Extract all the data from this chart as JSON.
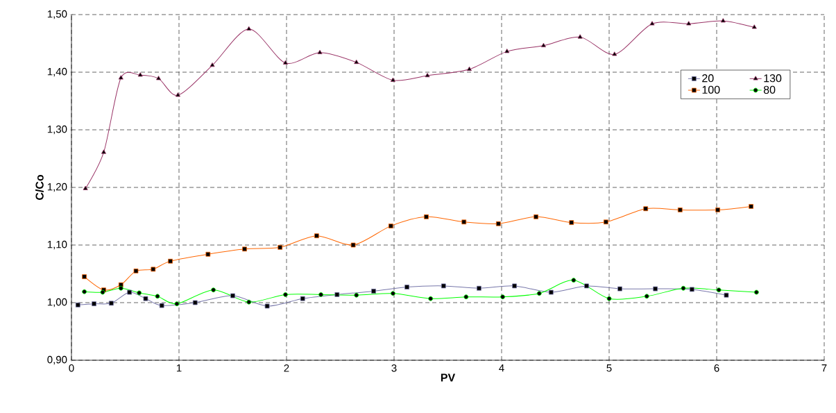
{
  "chart_data": {
    "type": "line",
    "xlabel": "PV",
    "ylabel": "C/Co",
    "xlim": [
      0,
      7
    ],
    "xticks": [
      0,
      1,
      2,
      3,
      4,
      5,
      6,
      7
    ],
    "ylim": [
      0.9,
      1.5
    ],
    "yticks": [
      {
        "value": 0.9,
        "label": "0,90"
      },
      {
        "value": 1.0,
        "label": "1,00"
      },
      {
        "value": 1.1,
        "label": "1,10"
      },
      {
        "value": 1.2,
        "label": "1,20"
      },
      {
        "value": 1.3,
        "label": "1,30"
      },
      {
        "value": 1.4,
        "label": "1,40"
      },
      {
        "value": 1.5,
        "label": "1,50"
      }
    ],
    "grid": true,
    "legend": "top right",
    "line_style": "solid",
    "series": [
      {
        "name": "20",
        "color": "#7777aa",
        "marker": "square",
        "x": [
          0.06,
          0.21,
          0.37,
          0.54,
          0.69,
          0.84,
          1.15,
          1.5,
          1.82,
          2.15,
          2.47,
          2.81,
          3.12,
          3.46,
          3.79,
          4.12,
          4.46,
          4.79,
          5.1,
          5.43,
          5.77,
          6.09
        ],
        "values": [
          0.996,
          0.998,
          0.999,
          1.018,
          1.007,
          0.995,
          1.0,
          1.012,
          0.994,
          1.007,
          1.014,
          1.02,
          1.027,
          1.029,
          1.025,
          1.029,
          1.018,
          1.029,
          1.024,
          1.024,
          1.023,
          1.013
        ]
      },
      {
        "name": "130",
        "color": "#993366",
        "marker": "triangle",
        "x": [
          0.13,
          0.3,
          0.46,
          0.64,
          0.81,
          0.99,
          1.31,
          1.65,
          1.99,
          2.31,
          2.65,
          2.99,
          3.31,
          3.7,
          4.05,
          4.39,
          4.73,
          5.05,
          5.4,
          5.74,
          6.06,
          6.35
        ],
        "values": [
          1.198,
          1.261,
          1.39,
          1.395,
          1.389,
          1.36,
          1.412,
          1.475,
          1.416,
          1.434,
          1.417,
          1.386,
          1.394,
          1.405,
          1.436,
          1.446,
          1.461,
          1.431,
          1.484,
          1.484,
          1.489,
          1.478
        ]
      },
      {
        "name": "100",
        "color": "#ff6600",
        "marker": "square",
        "x": [
          0.12,
          0.3,
          0.46,
          0.6,
          0.76,
          0.92,
          1.27,
          1.61,
          1.94,
          2.28,
          2.62,
          2.97,
          3.3,
          3.65,
          3.97,
          4.32,
          4.65,
          4.97,
          5.34,
          5.66,
          6.01,
          6.32
        ],
        "values": [
          1.045,
          1.022,
          1.031,
          1.055,
          1.058,
          1.072,
          1.084,
          1.093,
          1.096,
          1.116,
          1.1,
          1.133,
          1.149,
          1.14,
          1.137,
          1.149,
          1.139,
          1.14,
          1.163,
          1.161,
          1.161,
          1.167
        ]
      },
      {
        "name": "80",
        "color": "#00ff00",
        "marker": "circle",
        "x": [
          0.12,
          0.29,
          0.46,
          0.63,
          0.8,
          0.98,
          1.32,
          1.65,
          1.99,
          2.32,
          2.65,
          2.99,
          3.34,
          3.67,
          4.01,
          4.35,
          4.67,
          5.0,
          5.35,
          5.69,
          6.02,
          6.37
        ],
        "values": [
          1.019,
          1.018,
          1.025,
          1.017,
          1.011,
          0.998,
          1.022,
          1.001,
          1.014,
          1.014,
          1.013,
          1.016,
          1.007,
          1.01,
          1.01,
          1.016,
          1.039,
          1.007,
          1.011,
          1.025,
          1.022,
          1.018
        ]
      }
    ]
  }
}
